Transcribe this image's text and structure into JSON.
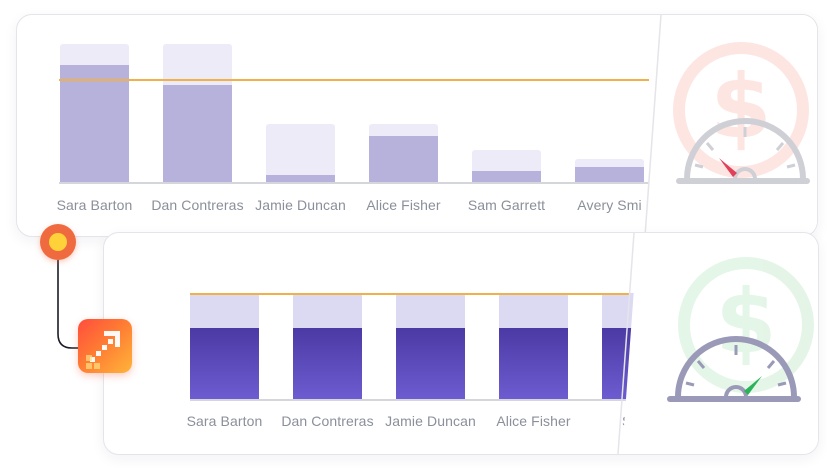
{
  "card_top": {
    "people": [
      {
        "label": "Sara Barton"
      },
      {
        "label": "Dan Contreras"
      },
      {
        "label": "Jamie Duncan"
      },
      {
        "label": "Alice Fisher"
      },
      {
        "label": "Sam Garrett"
      },
      {
        "label": "Avery Smi"
      }
    ],
    "bar_values": [
      0.85,
      0.7,
      0.05,
      0.33,
      0.08,
      0.11
    ],
    "bar_targets": [
      1.0,
      1.0,
      0.42,
      0.42,
      0.23,
      0.17
    ],
    "target_line": 0.75,
    "gauge": {
      "needle_color": "#e0405a",
      "watermark": "dollar-icon"
    }
  },
  "card_bottom": {
    "people": [
      {
        "label": "Sara Barton"
      },
      {
        "label": "Dan Contreras"
      },
      {
        "label": "Jamie Duncan"
      },
      {
        "label": "Alice Fisher"
      },
      {
        "label": "Sam"
      }
    ],
    "bar_values": [
      0.67,
      0.67,
      0.67,
      0.67,
      0.67
    ],
    "target_line": 1.0,
    "gauge": {
      "needle_color": "#2bb35a",
      "watermark": "dollar-icon"
    }
  },
  "colors": {
    "target_line": "#f0b04a",
    "top_bar_fill": "#b6b2dc",
    "bottom_bar_fill": "#4b3aa4",
    "connector_node": "#ef6a3e"
  }
}
